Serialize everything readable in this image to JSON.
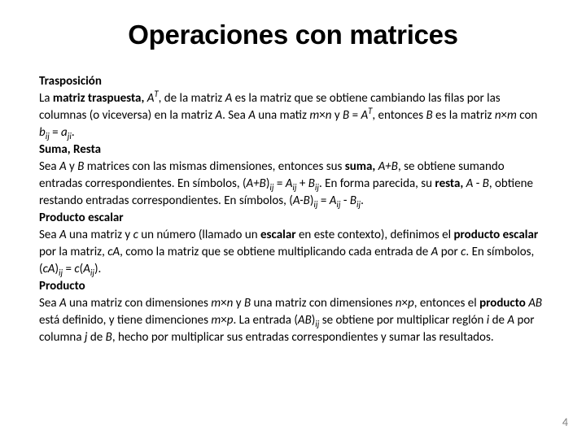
{
  "title": "Operaciones con matrices",
  "page_number": "4",
  "colors": {
    "background": "#ffffff",
    "text": "#000000",
    "page_number": "#7f7f7f"
  },
  "typography": {
    "title_font_family": "Arial",
    "title_font_size_pt": 33,
    "title_font_weight": 700,
    "body_font_family": "Calibri",
    "body_font_size_pt": 15,
    "body_line_height": 1.4
  },
  "sections": {
    "trasposicion": {
      "heading": "Trasposición",
      "text1a": "La ",
      "text1b": "matriz traspuesta, ",
      "A": "A",
      "T": "T",
      "text1c": ", de la matriz ",
      "text1d": " es la matriz que se obtiene cambiando las filas por las columnas (o viceversa) en la matriz ",
      "text1e": ". Sea ",
      "text1f": " una matiz ",
      "m": "m",
      "times": "×",
      "n": "n",
      "text1g": " y ",
      "B": "B",
      "eq": " = ",
      "text1h": ", entonces ",
      "text1i": " es la matriz ",
      "text1j": " con ",
      "b": "b",
      "ij": "ij",
      "a": "a",
      "ji": "ji",
      "dot": "."
    },
    "suma": {
      "heading": "Suma, Resta",
      "text2a": "Sea ",
      "A": "A",
      "y": " y ",
      "B": "B",
      "text2b": " matrices con las mismas dimensiones, entonces sus ",
      "suma": "suma, ",
      "apb": "A+B",
      "text2c": ", se obtiene sumando entradas correspondientes. En símbolos, (",
      "rpar": ")",
      "ij": "ij",
      "eq": " = ",
      "plus": " + ",
      "text2d": ". En forma parecida, su ",
      "resta": "resta, ",
      "minus": " - ",
      "text2e": ", obtiene restando entradas correspondientes. En símbolos, (",
      "amb": "A-B",
      "dot": "."
    },
    "escalar": {
      "heading": "Producto escalar",
      "text3a": "Sea ",
      "A": "A",
      "text3b": " una matriz y ",
      "c": "c",
      "text3c": " un número (llamado un ",
      "escalar": "escalar ",
      "text3d": "en este contexto), definimos el ",
      "pe": "producto escalar ",
      "text3e": "por la matriz, ",
      "cA": "cA",
      "text3f": ", como la matriz que se obtiene multiplicando cada entrada de ",
      "por": " por ",
      "text3g": ". En símbolos, (",
      "rpar": ")",
      "ij": "ij",
      "eq": " = ",
      "lpar": "(",
      "dot": "."
    },
    "producto": {
      "heading": "Producto",
      "text4a": "Sea ",
      "A": "A",
      "text4b": " una matriz con dimensiones ",
      "m": "m",
      "times": "×",
      "n": "n",
      "y": " y ",
      "B": "B",
      "text4c": " una matriz con dimensiones ",
      "p": "p",
      "text4d": ", entonces el ",
      "producto": "producto ",
      "AB": "AB",
      "text4e": " está definido, y tiene dimenciones ",
      "text4f": ". La entrada (",
      "rpar": ")",
      "ij": "ij",
      "text4g": " se obtiene por multiplicar reglón ",
      "i": "i",
      "de": " de ",
      "text4h": " por columna ",
      "j": "j",
      "text4i": ", hecho por multiplicar sus entradas correspondientes y sumar las resultados.",
      "dot": "."
    }
  }
}
